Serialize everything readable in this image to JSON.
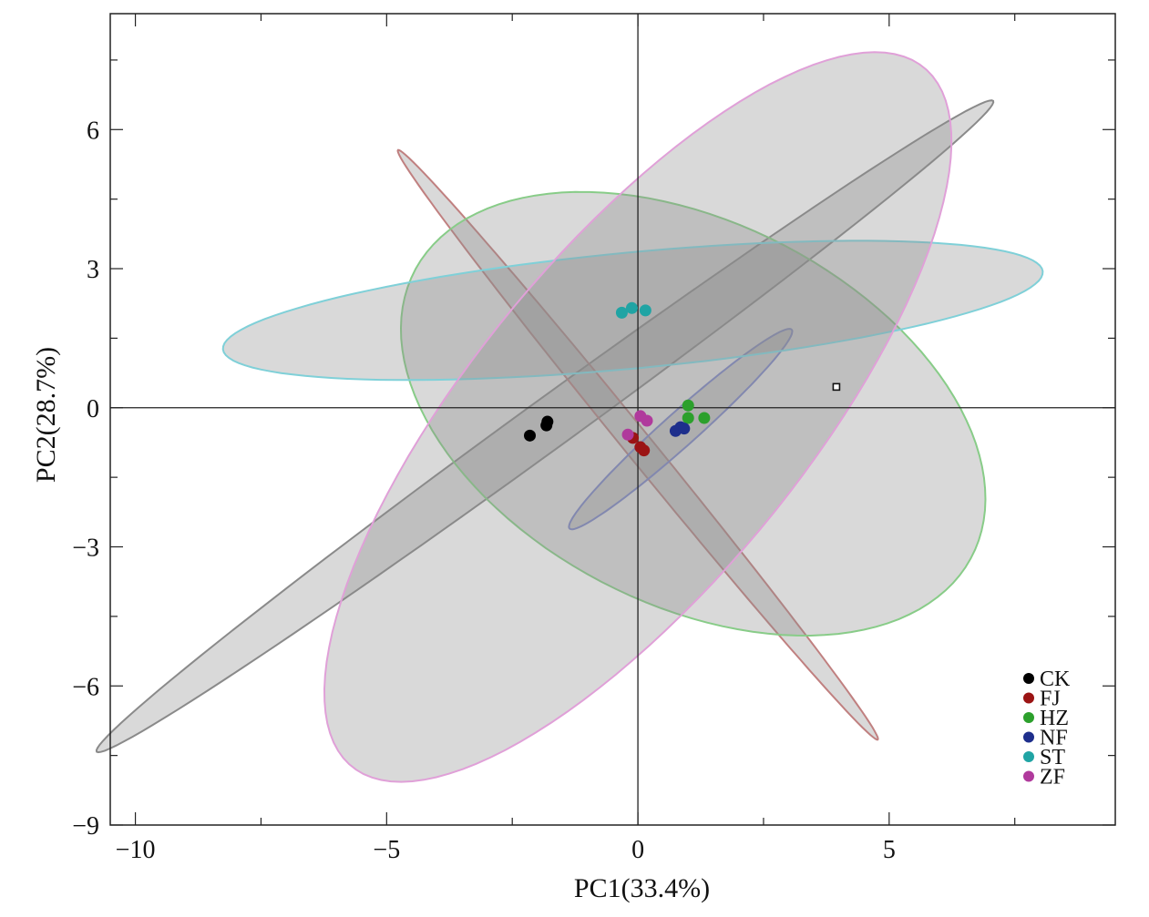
{
  "chart_data": {
    "type": "scatter",
    "title": "",
    "xlabel": "PC1(33.4%)",
    "ylabel": "PC2(28.7%)",
    "xlim": [
      -10.5,
      9.5
    ],
    "ylim": [
      -9,
      8.5
    ],
    "xticks": [
      -10,
      -5,
      0,
      5
    ],
    "xtick_labels": [
      "−10",
      "−5",
      "0",
      "5"
    ],
    "yticks": [
      -9,
      -6,
      -3,
      0,
      3,
      6
    ],
    "ytick_labels": [
      "−9",
      "−6",
      "−3",
      "0",
      "3",
      "6"
    ],
    "grid": false,
    "reference_lines": {
      "x": 0,
      "y": 0
    },
    "legend_position": "bottom-right",
    "series": [
      {
        "name": "CK",
        "color": "#000000",
        "ellipse_color": "#8a8a8a",
        "points": [
          [
            -2.15,
            -0.6
          ],
          [
            -1.8,
            -0.3
          ],
          [
            -1.82,
            -0.38
          ]
        ],
        "ellipse": {
          "cx": -1.85,
          "cy": -0.4,
          "a": 11.35,
          "b": 0.52,
          "angle": 38.2
        }
      },
      {
        "name": "FJ",
        "color": "#9b1414",
        "ellipse_color": "#c08080",
        "points": [
          [
            -0.1,
            -0.65
          ],
          [
            0.05,
            -0.85
          ],
          [
            0.12,
            -0.92
          ]
        ],
        "ellipse": {
          "cx": 0.0,
          "cy": -0.8,
          "a": 7.95,
          "b": 0.28,
          "angle": -53.1
        }
      },
      {
        "name": "HZ",
        "color": "#2ca02c",
        "ellipse_color": "#88cc88",
        "points": [
          [
            1.0,
            0.05
          ],
          [
            1.0,
            -0.22
          ],
          [
            1.32,
            -0.22
          ]
        ],
        "ellipse": {
          "cx": 1.1,
          "cy": -0.13,
          "a": 6.35,
          "b": 4.05,
          "angle": -31.4
        }
      },
      {
        "name": "NF",
        "color": "#1e2f8c",
        "ellipse_color": "#7e86c0",
        "points": [
          [
            0.75,
            -0.5
          ],
          [
            0.85,
            -0.42
          ],
          [
            0.92,
            -0.45
          ]
        ],
        "ellipse": {
          "cx": 0.85,
          "cy": -0.46,
          "a": 3.08,
          "b": 0.35,
          "angle": 44.2
        }
      },
      {
        "name": "ST",
        "color": "#20a4a4",
        "ellipse_color": "#7fd0d8",
        "points": [
          [
            -0.32,
            2.05
          ],
          [
            -0.12,
            2.15
          ],
          [
            0.15,
            2.1
          ]
        ],
        "ellipse": {
          "cx": -0.1,
          "cy": 2.1,
          "a": 8.2,
          "b": 1.25,
          "angle": 5.9
        }
      },
      {
        "name": "ZF",
        "color": "#b03a9c",
        "ellipse_color": "#e0a0d8",
        "points": [
          [
            -0.2,
            -0.58
          ],
          [
            0.05,
            -0.18
          ],
          [
            0.18,
            -0.28
          ]
        ],
        "ellipse": {
          "cx": 0.0,
          "cy": -0.2,
          "a": 9.45,
          "b": 3.4,
          "angle": 53.6
        }
      }
    ],
    "annotations": [
      {
        "marker": "square",
        "x": 3.95,
        "y": 0.45
      }
    ]
  }
}
